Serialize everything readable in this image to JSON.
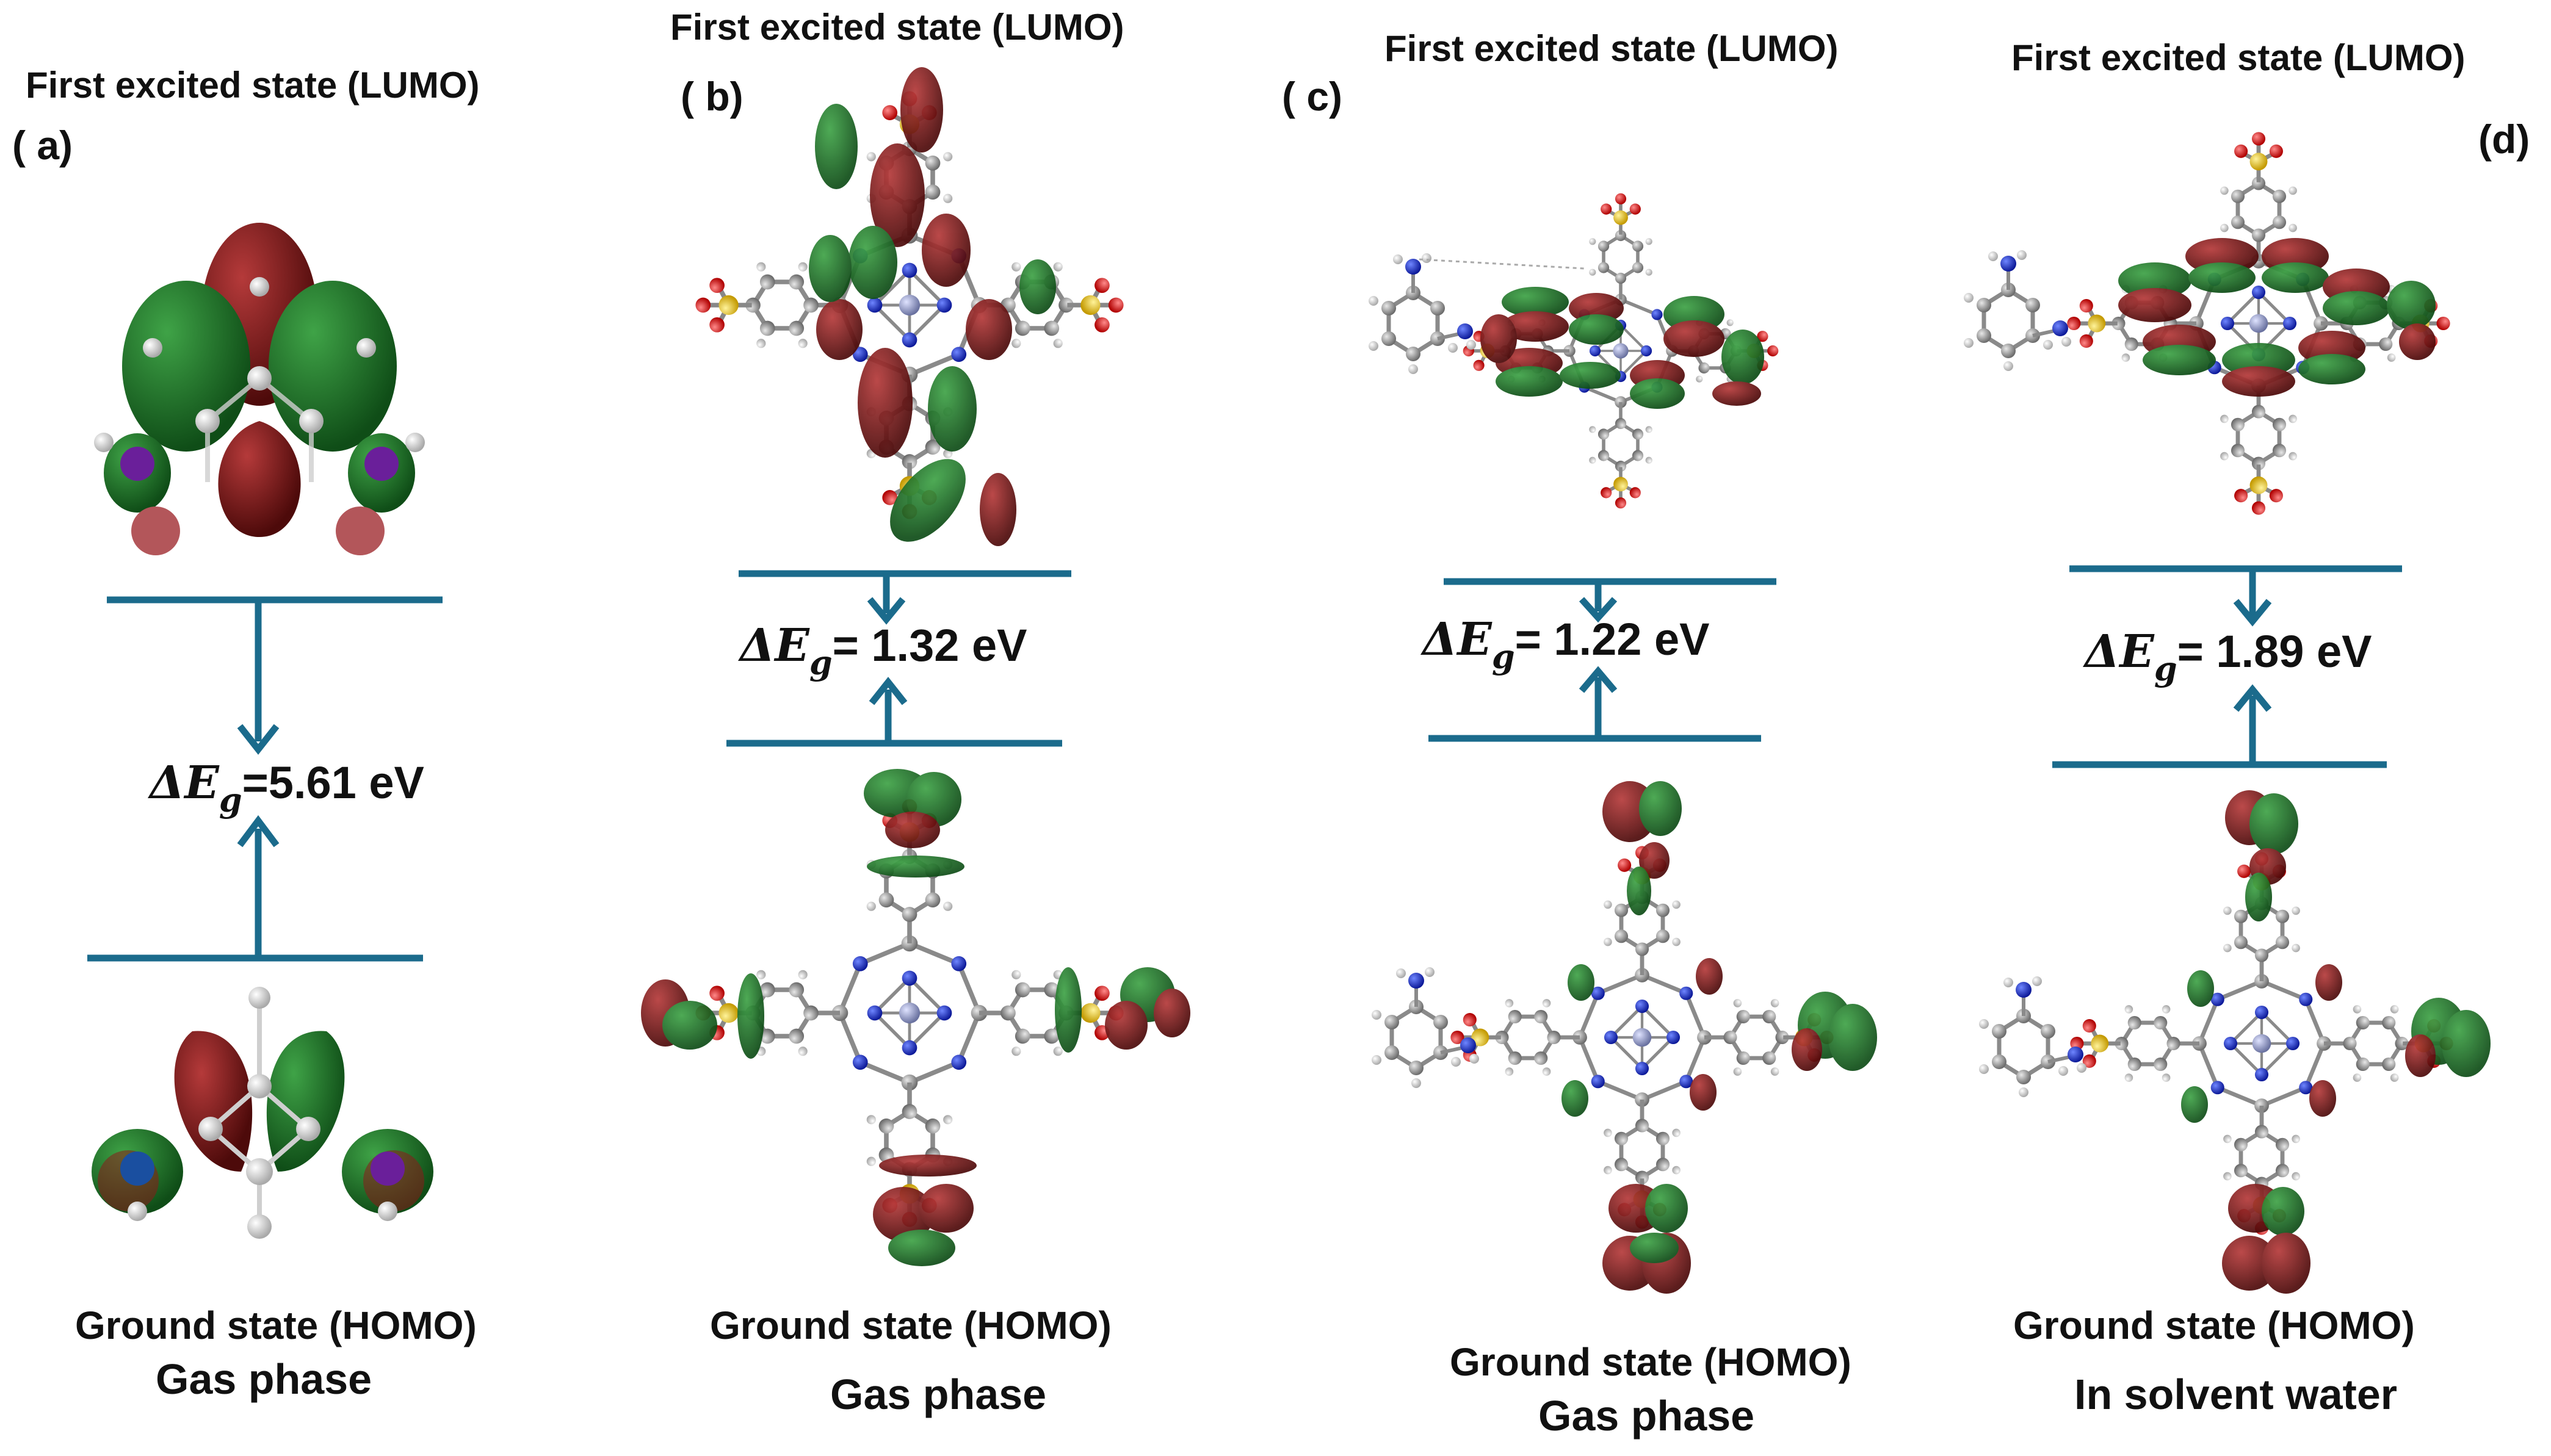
{
  "figure": {
    "panels": [
      {
        "id": "a",
        "panel_label": "( a)",
        "lumo_label": "First excited state (LUMO)",
        "gap_value": "=5.61 eV",
        "homo_label": "Ground state (HOMO)",
        "phase_label": "Gas phase"
      },
      {
        "id": "b",
        "panel_label": "( b)",
        "lumo_label": "First excited state (LUMO)",
        "gap_value": "= 1.32 eV",
        "homo_label": "Ground state (HOMO)",
        "phase_label": "Gas phase"
      },
      {
        "id": "c",
        "panel_label": "( c)",
        "lumo_label": "First excited state (LUMO)",
        "gap_value": "= 1.22 eV",
        "homo_label": "Ground state (HOMO)",
        "phase_label": "Gas phase"
      },
      {
        "id": "d",
        "panel_label": "(d)",
        "lumo_label": "First excited state (LUMO)",
        "gap_value": "= 1.89 eV",
        "homo_label": "Ground state (HOMO)",
        "phase_label": "In solvent water"
      }
    ],
    "gap_symbol": "ΔE",
    "gap_subscript": "g",
    "colors": {
      "level_line": "#1b6b8c",
      "orbital_positive": "#1f7a2a",
      "orbital_negative": "#8b1a1a",
      "carbon": "#9a9a9a",
      "nitrogen": "#2233cc",
      "sulfur": "#e6c21a",
      "oxygen": "#e01010",
      "hydrogen": "#f2f2f2",
      "metal": "#9aa4c8"
    }
  }
}
